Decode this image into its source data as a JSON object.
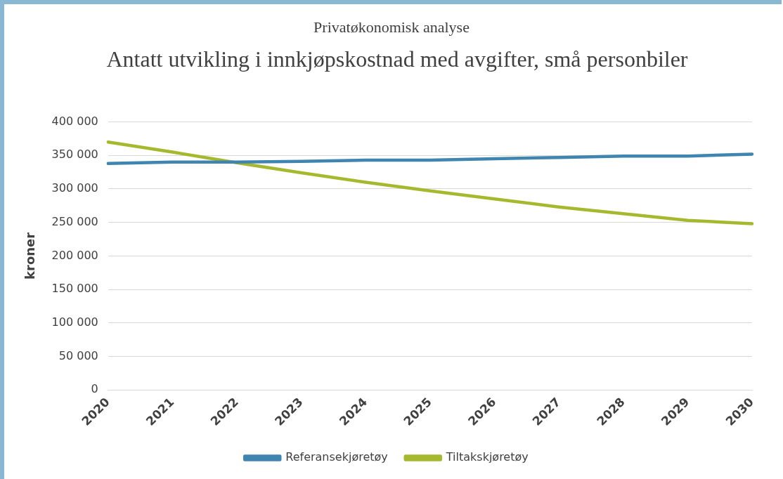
{
  "chart_data": {
    "type": "line",
    "subtitle": "Privatøkonomisk analyse",
    "title": "Antatt utvikling i innkjøpskostnad med avgifter, små personbiler",
    "ylabel": "kroner",
    "categories": [
      "2020",
      "2021",
      "2022",
      "2023",
      "2024",
      "2025",
      "2026",
      "2027",
      "2028",
      "2029",
      "2030"
    ],
    "series": [
      {
        "name": "Referansekjøretøy",
        "color": "#3f85b0",
        "values": [
          338000,
          340000,
          340000,
          341000,
          343000,
          343000,
          345000,
          347000,
          349000,
          349000,
          352000
        ]
      },
      {
        "name": "Tiltakskjøretøy",
        "color": "#a6b92e",
        "values": [
          370000,
          355000,
          339000,
          324000,
          310000,
          297000,
          285000,
          273000,
          263000,
          253000,
          248000
        ]
      }
    ],
    "ylim": [
      0,
      400000
    ],
    "yticks": [
      {
        "value": 0,
        "label": "0"
      },
      {
        "value": 50000,
        "label": "50 000"
      },
      {
        "value": 100000,
        "label": "100 000"
      },
      {
        "value": 150000,
        "label": "150 000"
      },
      {
        "value": 200000,
        "label": "200 000"
      },
      {
        "value": 250000,
        "label": "250 000"
      },
      {
        "value": 300000,
        "label": "300 000"
      },
      {
        "value": 350000,
        "label": "350 000"
      },
      {
        "value": 400000,
        "label": "400 000"
      }
    ],
    "grid": "y",
    "legend": "bottom",
    "marker": "none",
    "line_style": "solid"
  }
}
